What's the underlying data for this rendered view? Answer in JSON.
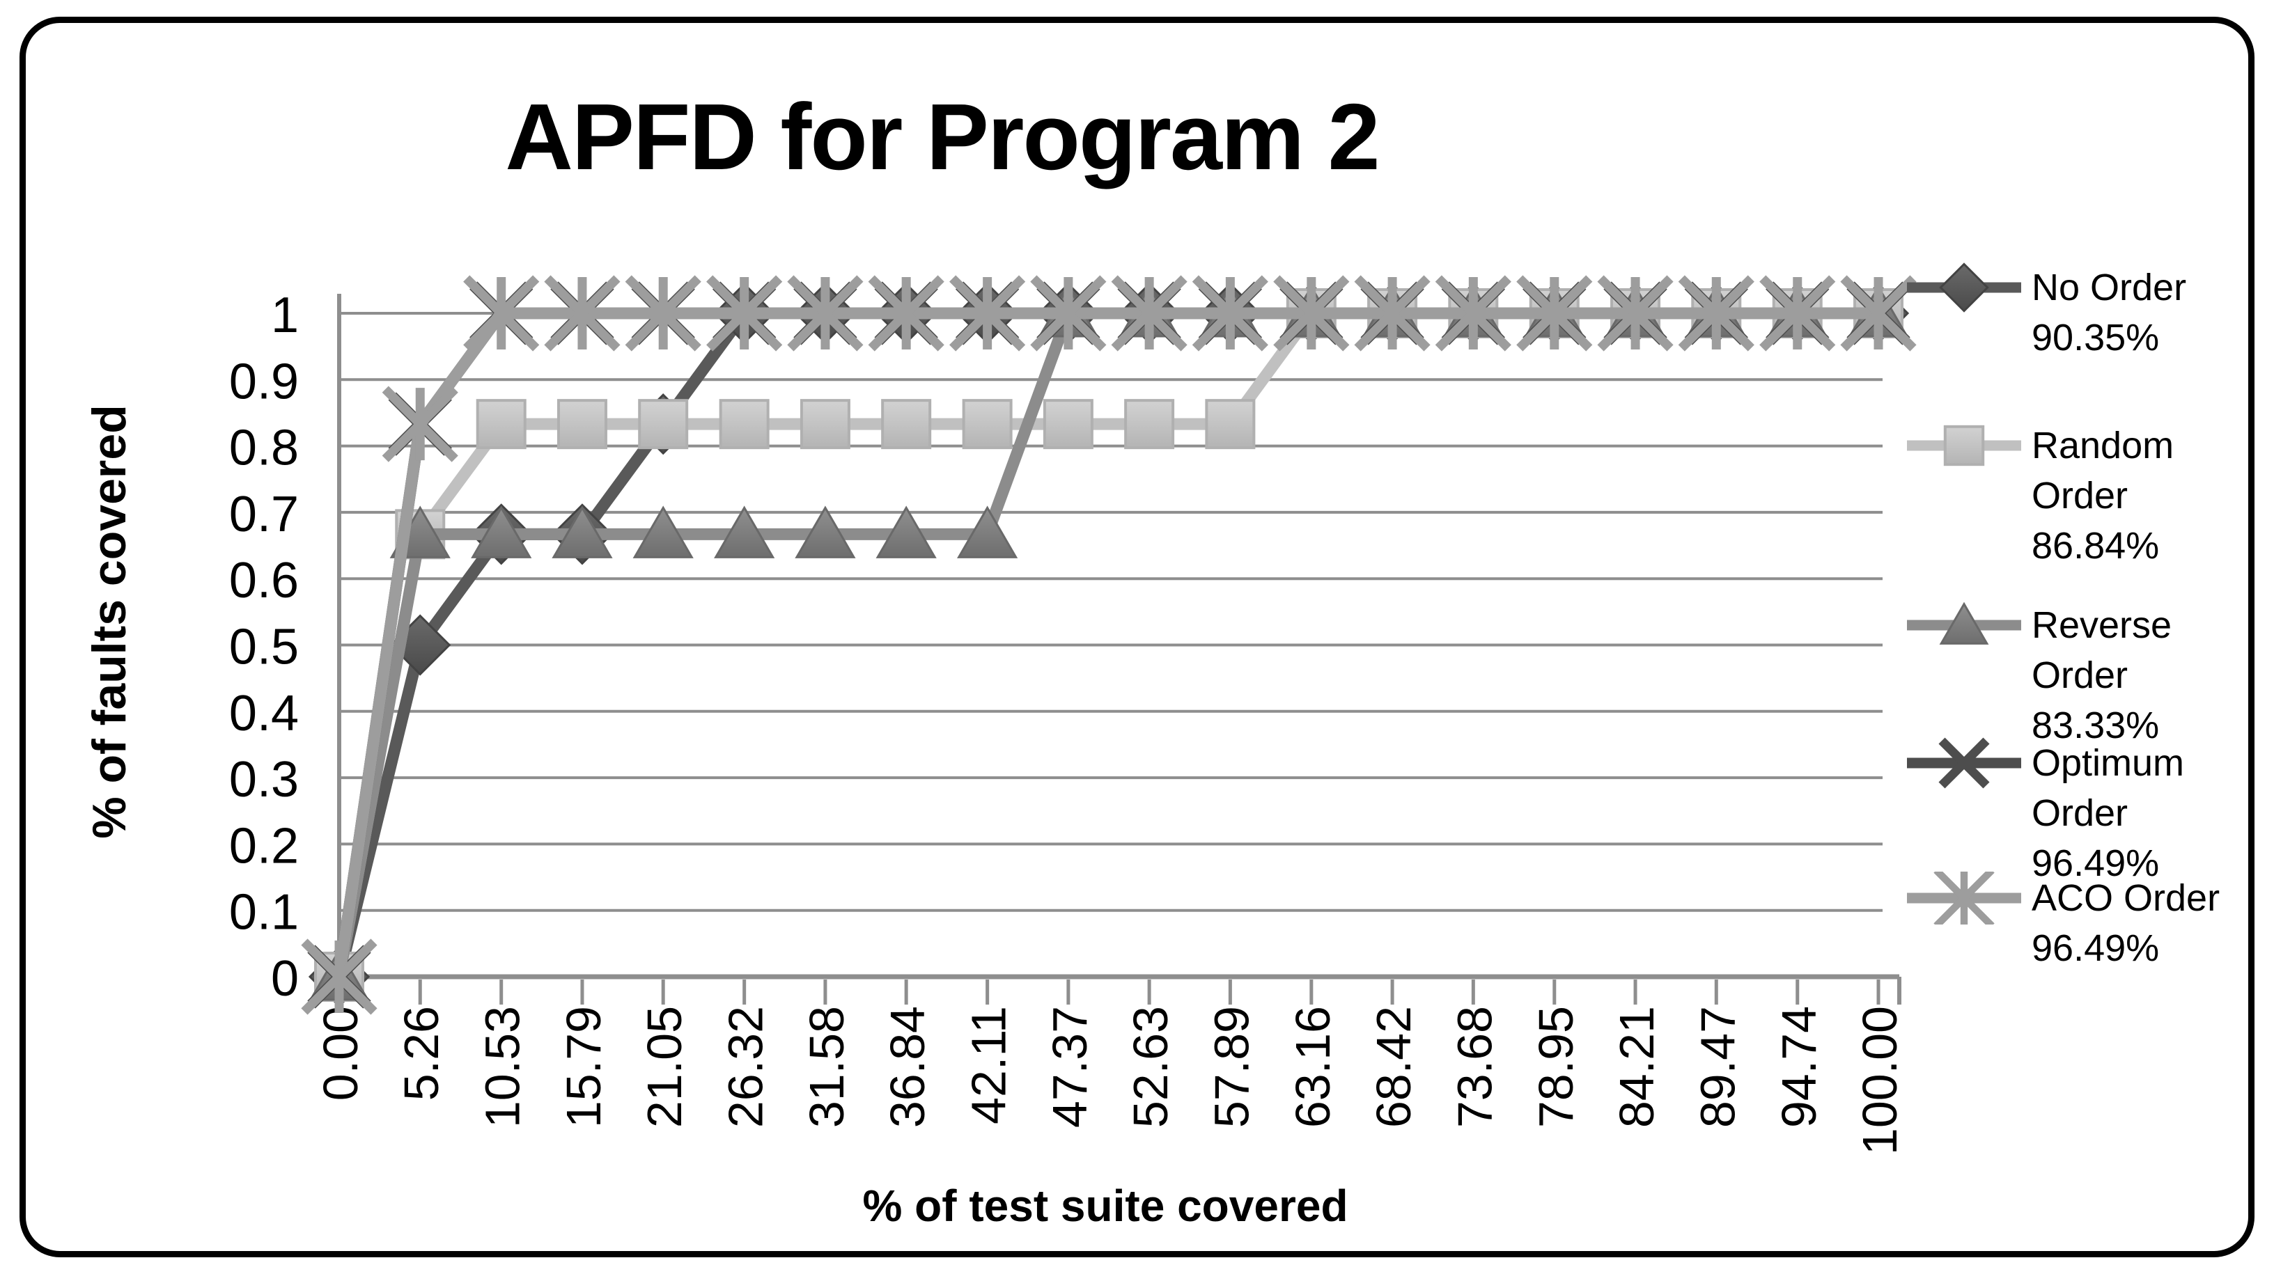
{
  "title": "APFD for Program 2",
  "chart_data": {
    "type": "line",
    "title": "APFD for Program 2",
    "xlabel": "% of test suite covered",
    "ylabel": "% of faults covered",
    "xlim": [
      0,
      100
    ],
    "ylim": [
      0,
      1
    ],
    "grid": true,
    "legend_position": "right",
    "axis_color": "#8e8e8e",
    "grid_color": "#8e8e8e",
    "x_tick_labels": [
      "0.00",
      "5.26",
      "10.53",
      "15.79",
      "21.05",
      "26.32",
      "31.58",
      "36.84",
      "42.11",
      "47.37",
      "52.63",
      "57.89",
      "63.16",
      "68.42",
      "73.68",
      "78.95",
      "84.21",
      "89.47",
      "94.74",
      "100.00"
    ],
    "x_values": [
      0,
      5.26,
      10.53,
      15.79,
      21.05,
      26.32,
      31.58,
      36.84,
      42.11,
      47.37,
      52.63,
      57.89,
      63.16,
      68.42,
      73.68,
      78.95,
      84.21,
      89.47,
      94.74,
      100
    ],
    "y_tick_labels": [
      "0",
      "0.1",
      "0.2",
      "0.3",
      "0.4",
      "0.5",
      "0.6",
      "0.7",
      "0.8",
      "0.9",
      "1"
    ],
    "y_tick_values": [
      0,
      0.1,
      0.2,
      0.3,
      0.4,
      0.5,
      0.6,
      0.7,
      0.8,
      0.9,
      1
    ],
    "series": [
      {
        "name": "No Order",
        "apfd": "90.35%",
        "legend_lines": [
          "No Order",
          "90.35%"
        ],
        "marker": "diamond",
        "color": "#595959",
        "marker_fill": "#555555",
        "marker_edge": "#434343",
        "values": [
          0,
          0.5,
          0.667,
          0.667,
          0.833,
          1,
          1,
          1,
          1,
          1,
          1,
          1,
          1,
          1,
          1,
          1,
          1,
          1,
          1,
          1
        ]
      },
      {
        "name": "Random Order",
        "apfd": "86.84%",
        "legend_lines": [
          "Random",
          "Order",
          "86.84%"
        ],
        "marker": "square",
        "color": "#c0c0c0",
        "marker_fill": "#c6c6c6",
        "marker_edge": "#b0b0b0",
        "values": [
          0,
          0.667,
          0.833,
          0.833,
          0.833,
          0.833,
          0.833,
          0.833,
          0.833,
          0.833,
          0.833,
          0.833,
          1,
          1,
          1,
          1,
          1,
          1,
          1,
          1
        ]
      },
      {
        "name": "Reverse Order",
        "apfd": "83.33%",
        "legend_lines": [
          "Reverse",
          "Order",
          "83.33%"
        ],
        "marker": "triangle",
        "color": "#8c8c8c",
        "marker_fill": "#7d7d7d",
        "marker_edge": "#696969",
        "values": [
          0,
          0.667,
          0.667,
          0.667,
          0.667,
          0.667,
          0.667,
          0.667,
          0.667,
          1,
          1,
          1,
          1,
          1,
          1,
          1,
          1,
          1,
          1,
          1
        ]
      },
      {
        "name": "Optimum Order",
        "apfd": "96.49%",
        "legend_lines": [
          "Optimum",
          "Order",
          "96.49%"
        ],
        "marker": "x",
        "color": "#4d4d4d",
        "marker_fill": "none",
        "marker_edge": "#4d4d4d",
        "values": [
          0,
          0.833,
          1,
          1,
          1,
          1,
          1,
          1,
          1,
          1,
          1,
          1,
          1,
          1,
          1,
          1,
          1,
          1,
          1,
          1
        ]
      },
      {
        "name": "ACO Order",
        "apfd": "96.49%",
        "legend_lines": [
          "ACO Order",
          "96.49%"
        ],
        "marker": "asterisk",
        "color": "#9d9d9d",
        "marker_fill": "none",
        "marker_edge": "#9d9d9d",
        "values": [
          0,
          0.833,
          1,
          1,
          1,
          1,
          1,
          1,
          1,
          1,
          1,
          1,
          1,
          1,
          1,
          1,
          1,
          1,
          1,
          1
        ]
      }
    ]
  }
}
